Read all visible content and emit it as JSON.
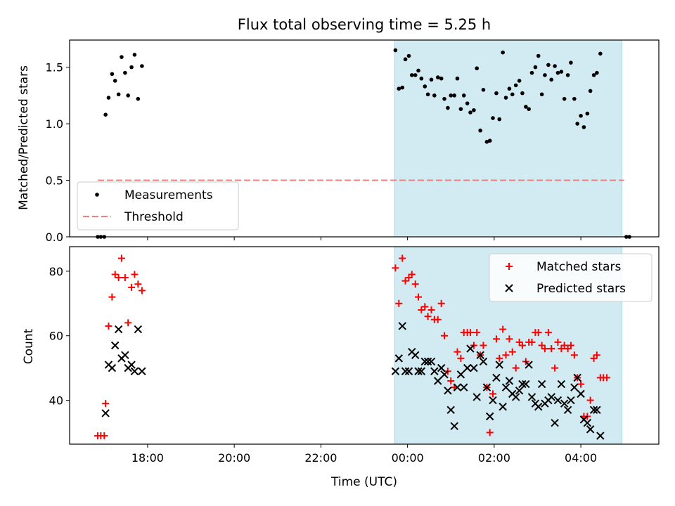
{
  "chart_data": [
    {
      "type": "scatter",
      "title": "Flux total observing time = 5.25 h",
      "ylabel": "Matched/Predicted stars",
      "xlabel": "",
      "ylim": [
        0,
        1.74
      ],
      "yticks": [
        0.0,
        0.5,
        1.0,
        1.5
      ],
      "ytick_labels": [
        "0.0",
        "0.5",
        "1.0",
        "1.5"
      ],
      "xlim_hours": [
        16.2,
        29.8
      ],
      "highlight_span_hours": [
        23.7,
        28.95
      ],
      "series": [
        {
          "name": "Measurements",
          "marker": "dot",
          "color": "#000000",
          "points": [
            [
              16.85,
              0.0
            ],
            [
              16.92,
              0.0
            ],
            [
              17.0,
              0.0
            ],
            [
              17.03,
              1.08
            ],
            [
              17.1,
              1.23
            ],
            [
              17.18,
              1.44
            ],
            [
              17.25,
              1.38
            ],
            [
              17.33,
              1.26
            ],
            [
              17.4,
              1.59
            ],
            [
              17.48,
              1.45
            ],
            [
              17.55,
              1.25
            ],
            [
              17.63,
              1.5
            ],
            [
              17.7,
              1.61
            ],
            [
              17.78,
              1.22
            ],
            [
              17.87,
              1.51
            ],
            [
              23.72,
              1.65
            ],
            [
              23.8,
              1.31
            ],
            [
              23.88,
              1.32
            ],
            [
              23.95,
              1.57
            ],
            [
              24.03,
              1.6
            ],
            [
              24.1,
              1.43
            ],
            [
              24.18,
              1.43
            ],
            [
              24.25,
              1.47
            ],
            [
              24.32,
              1.4
            ],
            [
              24.4,
              1.33
            ],
            [
              24.47,
              1.26
            ],
            [
              24.55,
              1.39
            ],
            [
              24.62,
              1.25
            ],
            [
              24.7,
              1.41
            ],
            [
              24.78,
              1.4
            ],
            [
              24.85,
              1.22
            ],
            [
              24.93,
              1.14
            ],
            [
              25.0,
              1.25
            ],
            [
              25.08,
              1.25
            ],
            [
              25.15,
              1.4
            ],
            [
              25.23,
              1.13
            ],
            [
              25.3,
              1.25
            ],
            [
              25.38,
              1.18
            ],
            [
              25.45,
              1.1
            ],
            [
              25.53,
              1.12
            ],
            [
              25.6,
              1.49
            ],
            [
              25.68,
              0.94
            ],
            [
              25.75,
              1.3
            ],
            [
              25.83,
              0.84
            ],
            [
              25.9,
              0.85
            ],
            [
              25.97,
              1.05
            ],
            [
              26.05,
              1.27
            ],
            [
              26.12,
              1.04
            ],
            [
              26.2,
              1.63
            ],
            [
              26.27,
              1.23
            ],
            [
              26.35,
              1.31
            ],
            [
              26.42,
              1.26
            ],
            [
              26.5,
              1.34
            ],
            [
              26.58,
              1.38
            ],
            [
              26.65,
              1.27
            ],
            [
              26.73,
              1.15
            ],
            [
              26.8,
              1.13
            ],
            [
              26.87,
              1.45
            ],
            [
              26.95,
              1.5
            ],
            [
              27.02,
              1.6
            ],
            [
              27.1,
              1.26
            ],
            [
              27.17,
              1.43
            ],
            [
              27.25,
              1.52
            ],
            [
              27.32,
              1.39
            ],
            [
              27.4,
              1.51
            ],
            [
              27.47,
              1.45
            ],
            [
              27.55,
              1.46
            ],
            [
              27.62,
              1.22
            ],
            [
              27.7,
              1.43
            ],
            [
              27.77,
              1.54
            ],
            [
              27.85,
              1.22
            ],
            [
              27.92,
              1.0
            ],
            [
              28.0,
              1.07
            ],
            [
              28.07,
              0.97
            ],
            [
              28.15,
              1.09
            ],
            [
              28.22,
              1.29
            ],
            [
              28.3,
              1.43
            ],
            [
              28.37,
              1.45
            ],
            [
              28.45,
              1.62
            ],
            [
              29.05,
              0.0
            ],
            [
              29.12,
              0.0
            ]
          ]
        },
        {
          "name": "Threshold",
          "style": "dashed",
          "color": "#f08080",
          "x_hours": [
            16.85,
            29.0
          ],
          "value": 0.5
        }
      ],
      "legend": "lower-left",
      "legend_entries": [
        "Measurements",
        "Threshold"
      ]
    },
    {
      "type": "scatter",
      "title": "",
      "ylabel": "Count",
      "xlabel": "Time (UTC)",
      "ylim": [
        26.4,
        87.6
      ],
      "yticks": [
        40,
        60,
        80
      ],
      "ytick_labels": [
        "40",
        "60",
        "80"
      ],
      "xlim_hours": [
        16.2,
        29.8
      ],
      "xticks_hours": [
        18,
        20,
        22,
        24,
        26,
        28
      ],
      "xtick_labels": [
        "18:00",
        "20:00",
        "22:00",
        "00:00",
        "02:00",
        "04:00"
      ],
      "highlight_span_hours": [
        23.7,
        28.95
      ],
      "series": [
        {
          "name": "Matched stars",
          "marker": "plus",
          "color": "#ff0000",
          "points": [
            [
              16.85,
              29
            ],
            [
              16.92,
              29
            ],
            [
              17.0,
              29
            ],
            [
              17.03,
              39
            ],
            [
              17.1,
              63
            ],
            [
              17.18,
              72
            ],
            [
              17.25,
              79
            ],
            [
              17.33,
              78
            ],
            [
              17.4,
              84
            ],
            [
              17.48,
              78
            ],
            [
              17.55,
              64
            ],
            [
              17.63,
              75
            ],
            [
              17.7,
              79
            ],
            [
              17.78,
              76
            ],
            [
              17.87,
              74
            ],
            [
              23.72,
              81
            ],
            [
              23.8,
              70
            ],
            [
              23.88,
              84
            ],
            [
              23.95,
              77
            ],
            [
              24.03,
              78
            ],
            [
              24.1,
              79
            ],
            [
              24.18,
              76
            ],
            [
              24.25,
              72
            ],
            [
              24.32,
              68
            ],
            [
              24.4,
              69
            ],
            [
              24.47,
              66
            ],
            [
              24.55,
              68
            ],
            [
              24.62,
              65
            ],
            [
              24.7,
              65
            ],
            [
              24.78,
              70
            ],
            [
              24.85,
              60
            ],
            [
              24.93,
              49
            ],
            [
              25.0,
              46
            ],
            [
              25.08,
              44
            ],
            [
              25.15,
              55
            ],
            [
              25.23,
              53
            ],
            [
              25.3,
              61
            ],
            [
              25.38,
              61
            ],
            [
              25.45,
              61
            ],
            [
              25.53,
              57
            ],
            [
              25.6,
              61
            ],
            [
              25.68,
              54
            ],
            [
              25.75,
              57
            ],
            [
              25.83,
              44
            ],
            [
              25.9,
              30
            ],
            [
              25.97,
              42
            ],
            [
              26.05,
              59
            ],
            [
              26.12,
              53
            ],
            [
              26.2,
              62
            ],
            [
              26.27,
              54
            ],
            [
              26.35,
              59
            ],
            [
              26.42,
              55
            ],
            [
              26.5,
              50
            ],
            [
              26.58,
              58
            ],
            [
              26.65,
              57
            ],
            [
              26.73,
              52
            ],
            [
              26.8,
              58
            ],
            [
              26.87,
              58
            ],
            [
              26.95,
              61
            ],
            [
              27.02,
              61
            ],
            [
              27.1,
              57
            ],
            [
              27.17,
              56
            ],
            [
              27.25,
              61
            ],
            [
              27.32,
              56
            ],
            [
              27.4,
              50
            ],
            [
              27.47,
              58
            ],
            [
              27.55,
              56
            ],
            [
              27.62,
              57
            ],
            [
              27.7,
              56
            ],
            [
              27.77,
              57
            ],
            [
              27.85,
              54
            ],
            [
              27.92,
              47
            ],
            [
              28.0,
              45
            ],
            [
              28.07,
              35
            ],
            [
              28.15,
              35
            ],
            [
              28.22,
              40
            ],
            [
              28.3,
              53
            ],
            [
              28.37,
              54
            ],
            [
              28.45,
              47
            ],
            [
              28.52,
              47
            ],
            [
              28.6,
              47
            ]
          ]
        },
        {
          "name": "Predicted stars",
          "marker": "x",
          "color": "#000000",
          "points": [
            [
              17.03,
              36
            ],
            [
              17.1,
              51
            ],
            [
              17.18,
              50
            ],
            [
              17.25,
              57
            ],
            [
              17.33,
              62
            ],
            [
              17.4,
              53
            ],
            [
              17.48,
              54
            ],
            [
              17.55,
              50
            ],
            [
              17.63,
              51
            ],
            [
              17.7,
              49
            ],
            [
              17.78,
              62
            ],
            [
              17.87,
              49
            ],
            [
              23.72,
              49
            ],
            [
              23.8,
              53
            ],
            [
              23.88,
              63
            ],
            [
              23.95,
              49
            ],
            [
              24.03,
              49
            ],
            [
              24.1,
              55
            ],
            [
              24.18,
              54
            ],
            [
              24.25,
              49
            ],
            [
              24.32,
              49
            ],
            [
              24.4,
              52
            ],
            [
              24.47,
              52
            ],
            [
              24.55,
              52
            ],
            [
              24.62,
              49
            ],
            [
              24.7,
              46
            ],
            [
              24.78,
              50
            ],
            [
              24.85,
              48
            ],
            [
              24.93,
              43
            ],
            [
              25.0,
              37
            ],
            [
              25.08,
              32
            ],
            [
              25.15,
              44
            ],
            [
              25.23,
              48
            ],
            [
              25.3,
              44
            ],
            [
              25.38,
              50
            ],
            [
              25.45,
              56
            ],
            [
              25.53,
              50
            ],
            [
              25.6,
              41
            ],
            [
              25.68,
              54
            ],
            [
              25.75,
              52
            ],
            [
              25.83,
              44
            ],
            [
              25.9,
              35
            ],
            [
              25.97,
              40
            ],
            [
              26.05,
              47
            ],
            [
              26.12,
              51
            ],
            [
              26.2,
              38
            ],
            [
              26.27,
              44
            ],
            [
              26.35,
              46
            ],
            [
              26.42,
              42
            ],
            [
              26.5,
              41
            ],
            [
              26.58,
              43
            ],
            [
              26.65,
              45
            ],
            [
              26.73,
              45
            ],
            [
              26.8,
              51
            ],
            [
              26.87,
              41
            ],
            [
              26.95,
              39
            ],
            [
              27.02,
              38
            ],
            [
              27.1,
              45
            ],
            [
              27.17,
              39
            ],
            [
              27.25,
              40
            ],
            [
              27.32,
              41
            ],
            [
              27.4,
              33
            ],
            [
              27.47,
              40
            ],
            [
              27.55,
              45
            ],
            [
              27.62,
              39
            ],
            [
              27.7,
              37
            ],
            [
              27.77,
              40
            ],
            [
              27.85,
              44
            ],
            [
              27.92,
              47
            ],
            [
              28.0,
              42
            ],
            [
              28.07,
              34
            ],
            [
              28.15,
              33
            ],
            [
              28.22,
              31
            ],
            [
              28.3,
              37
            ],
            [
              28.37,
              37
            ],
            [
              28.45,
              29
            ]
          ]
        }
      ],
      "legend": "upper-right",
      "legend_entries": [
        "Matched stars",
        "Predicted stars"
      ]
    }
  ],
  "colors": {
    "span_fill": "#add8e6",
    "threshold": "#f08080",
    "matched": "#ff0000",
    "predicted": "#000000"
  }
}
